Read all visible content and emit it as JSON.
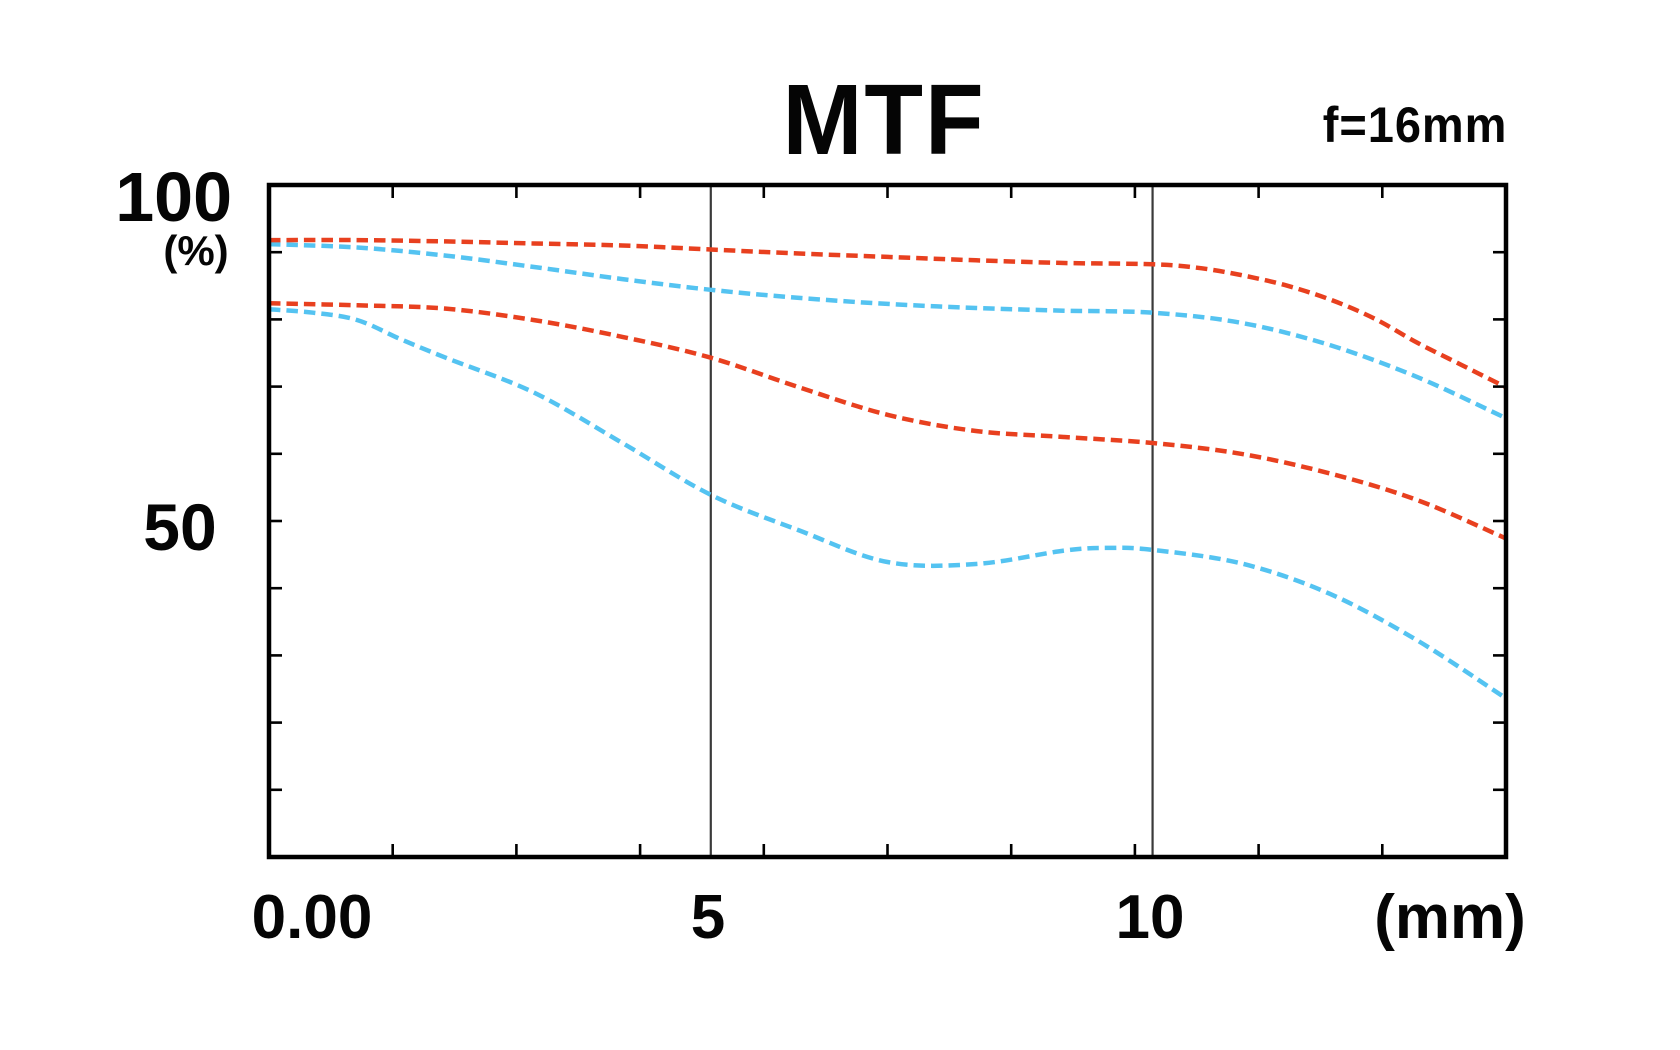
{
  "title": "MTF",
  "focal_length": "f=16mm",
  "axis_labels": {
    "y_max": "100",
    "y_unit": "(%)",
    "y_mid": "50",
    "x_origin": "0.00",
    "x_5": "5",
    "x_10": "10",
    "x_unit": "(mm)"
  },
  "colors": {
    "red": "#e8401f",
    "cyan": "#54c3f1",
    "frame": "#000000",
    "grid": "#3a3a3a",
    "text": "#050505",
    "background": "#ffffff"
  },
  "chart_data": {
    "type": "line",
    "title": "MTF",
    "annotation": "f=16mm",
    "xlabel": "(mm)",
    "ylabel": "(%)",
    "xlim": [
      0,
      14
    ],
    "ylim": [
      0,
      100
    ],
    "grid": "vertical lines at labeled x ticks only",
    "legend_position": "none",
    "line_style": "dashed",
    "x_labeled_ticks": [
      {
        "value": 0,
        "label": "0.00"
      },
      {
        "value": 5,
        "label": "5"
      },
      {
        "value": 10,
        "label": "10"
      }
    ],
    "y_labeled_ticks": [
      {
        "value": 100,
        "label": "100"
      },
      {
        "value": 50,
        "label": "50"
      }
    ],
    "x_minor_ticks": [
      1.4,
      2.8,
      4.2,
      5.6,
      7.0,
      8.4,
      9.8,
      11.2,
      12.6
    ],
    "y_minor_ticks": [
      10,
      20,
      30,
      40,
      50,
      60,
      70,
      80,
      90
    ],
    "gridlines_x": [
      5,
      10
    ],
    "series": [
      {
        "name": "cyan-upper",
        "color": "#54c3f1",
        "x": [
          0,
          1,
          2,
          3,
          4,
          5,
          6,
          7,
          8,
          9,
          10,
          11,
          12,
          13,
          14
        ],
        "y": [
          91.2,
          90.7,
          89.5,
          87.8,
          86.0,
          84.4,
          83.2,
          82.3,
          81.7,
          81.3,
          81.0,
          79.5,
          76.2,
          71.4,
          65.3
        ]
      },
      {
        "name": "cyan-lower",
        "color": "#54c3f1",
        "x": [
          0,
          0.5,
          1,
          1.5,
          2,
          3,
          4,
          5,
          6,
          7,
          8,
          9,
          9.5,
          10,
          11,
          12,
          13,
          14
        ],
        "y": [
          81.5,
          81.0,
          79.9,
          77.0,
          74.3,
          69.1,
          61.6,
          53.9,
          48.6,
          43.9,
          43.6,
          45.6,
          46.0,
          45.7,
          43.7,
          39.2,
          32.2,
          23.6
        ]
      },
      {
        "name": "red-upper",
        "color": "#e8401f",
        "x": [
          0,
          1,
          2,
          3,
          4,
          5,
          6,
          7,
          8,
          9,
          10,
          10.5,
          11,
          11.5,
          12,
          12.5,
          13,
          13.5,
          14
        ],
        "y": [
          91.8,
          91.8,
          91.6,
          91.3,
          91.0,
          90.4,
          89.8,
          89.3,
          88.8,
          88.4,
          88.2,
          87.7,
          86.6,
          85.1,
          83.0,
          80.2,
          76.5,
          73.2,
          69.9
        ]
      },
      {
        "name": "red-lower",
        "color": "#e8401f",
        "x": [
          0,
          1,
          2,
          3,
          4,
          5,
          6,
          7,
          8,
          9,
          10,
          11,
          12,
          13,
          14
        ],
        "y": [
          82.4,
          82.1,
          81.6,
          79.9,
          77.4,
          74.3,
          69.9,
          65.8,
          63.4,
          62.5,
          61.6,
          60.0,
          57.1,
          53.1,
          47.4
        ]
      }
    ]
  }
}
